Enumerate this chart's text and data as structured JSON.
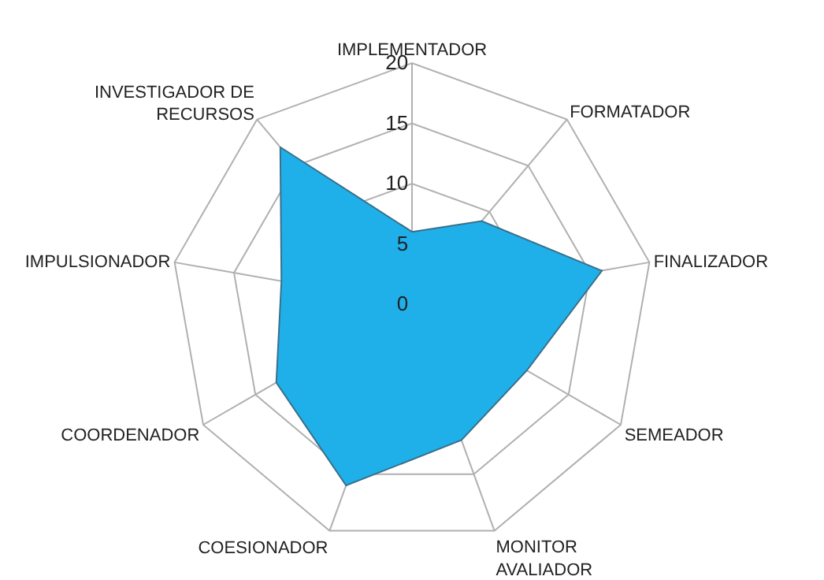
{
  "chart_data": {
    "type": "radar",
    "categories": [
      "IMPLEMENTADOR",
      "FORMATADOR",
      "FINALIZADOR",
      "SEMEADOR",
      "MONITOR AVALIADOR",
      "COESIONADOR",
      "COORDENADOR",
      "IMPULSIONADOR",
      "INVESTIGADOR DE RECURSOS"
    ],
    "series": [
      {
        "color": "#1fb0ea",
        "values": [
          6,
          9,
          16,
          11,
          12,
          16,
          13,
          11,
          17
        ]
      }
    ],
    "ylim": [
      0,
      20
    ],
    "yticks": [
      0,
      5,
      10,
      15,
      20
    ],
    "grid": true
  }
}
